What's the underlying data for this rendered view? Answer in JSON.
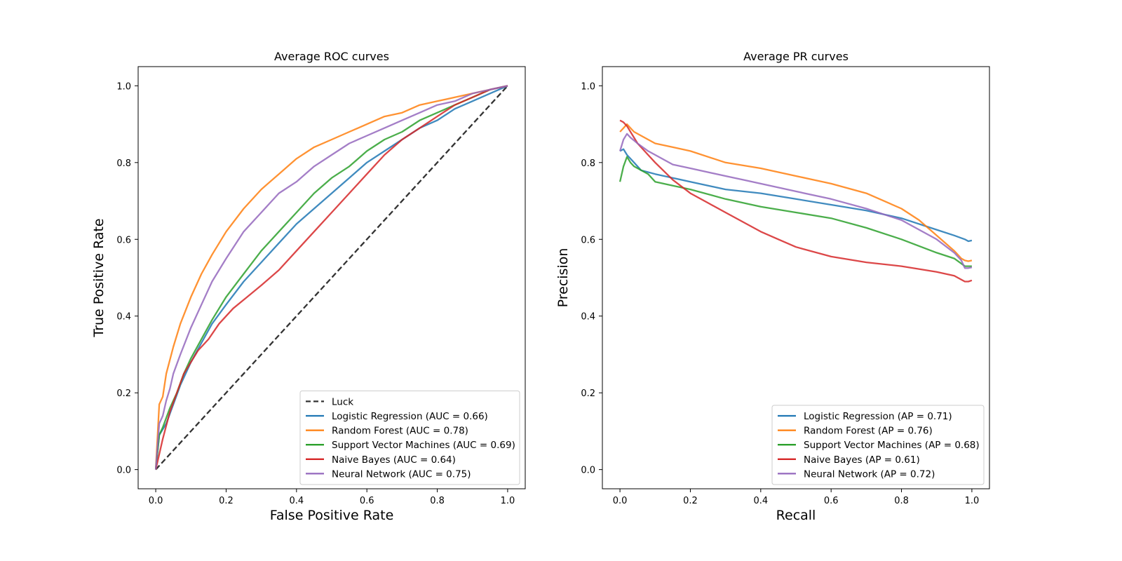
{
  "figure": {
    "background": "#ffffff"
  },
  "chart_data": [
    {
      "type": "line",
      "title": "Average ROC curves",
      "xlabel": "False Positive Rate",
      "ylabel": "True Positive Rate",
      "xlim": [
        -0.05,
        1.05
      ],
      "ylim": [
        -0.05,
        1.05
      ],
      "xticks": [
        "0.0",
        "0.2",
        "0.4",
        "0.6",
        "0.8",
        "1.0"
      ],
      "yticks": [
        "0.0",
        "0.2",
        "0.4",
        "0.6",
        "0.8",
        "1.0"
      ],
      "grid": false,
      "legend_position": "lower right",
      "series": [
        {
          "name": "Luck",
          "color": "#333333",
          "dash": true,
          "x": [
            0,
            1
          ],
          "y": [
            0,
            1
          ]
        },
        {
          "name": "Logistic Regression (AUC = 0.66)",
          "color": "#1f77b4",
          "x": [
            0,
            0.01,
            0.03,
            0.05,
            0.07,
            0.1,
            0.13,
            0.16,
            0.2,
            0.25,
            0.3,
            0.35,
            0.4,
            0.45,
            0.5,
            0.55,
            0.6,
            0.65,
            0.7,
            0.75,
            0.8,
            0.85,
            0.9,
            0.95,
            1.0
          ],
          "y": [
            0,
            0.09,
            0.12,
            0.17,
            0.22,
            0.28,
            0.33,
            0.38,
            0.43,
            0.49,
            0.54,
            0.59,
            0.64,
            0.68,
            0.72,
            0.76,
            0.8,
            0.83,
            0.86,
            0.89,
            0.91,
            0.94,
            0.96,
            0.98,
            1.0
          ]
        },
        {
          "name": "Random Forest (AUC = 0.78)",
          "color": "#ff7f0e",
          "x": [
            0,
            0.01,
            0.02,
            0.03,
            0.05,
            0.07,
            0.1,
            0.13,
            0.16,
            0.2,
            0.25,
            0.3,
            0.35,
            0.4,
            0.45,
            0.5,
            0.55,
            0.6,
            0.65,
            0.7,
            0.75,
            0.8,
            0.85,
            0.9,
            0.95,
            1.0
          ],
          "y": [
            0,
            0.17,
            0.19,
            0.25,
            0.32,
            0.38,
            0.45,
            0.51,
            0.56,
            0.62,
            0.68,
            0.73,
            0.77,
            0.81,
            0.84,
            0.86,
            0.88,
            0.9,
            0.92,
            0.93,
            0.95,
            0.96,
            0.97,
            0.98,
            0.99,
            1.0
          ]
        },
        {
          "name": "Support Vector Machines (AUC = 0.69)",
          "color": "#2ca02c",
          "x": [
            0,
            0.01,
            0.02,
            0.04,
            0.06,
            0.08,
            0.1,
            0.13,
            0.16,
            0.2,
            0.25,
            0.3,
            0.35,
            0.4,
            0.45,
            0.5,
            0.55,
            0.6,
            0.65,
            0.7,
            0.75,
            0.8,
            0.85,
            0.9,
            0.95,
            1.0
          ],
          "y": [
            0,
            0.09,
            0.11,
            0.16,
            0.2,
            0.25,
            0.29,
            0.34,
            0.39,
            0.45,
            0.51,
            0.57,
            0.62,
            0.67,
            0.72,
            0.76,
            0.79,
            0.83,
            0.86,
            0.88,
            0.91,
            0.93,
            0.95,
            0.97,
            0.99,
            1.0
          ]
        },
        {
          "name": "Naive Bayes (AUC = 0.64)",
          "color": "#d62728",
          "x": [
            0,
            0.02,
            0.04,
            0.06,
            0.08,
            0.1,
            0.12,
            0.15,
            0.18,
            0.22,
            0.26,
            0.3,
            0.35,
            0.4,
            0.45,
            0.5,
            0.55,
            0.6,
            0.65,
            0.7,
            0.75,
            0.8,
            0.85,
            0.9,
            0.95,
            1.0
          ],
          "y": [
            0,
            0.08,
            0.15,
            0.2,
            0.25,
            0.28,
            0.31,
            0.34,
            0.38,
            0.42,
            0.45,
            0.48,
            0.52,
            0.57,
            0.62,
            0.67,
            0.72,
            0.77,
            0.82,
            0.86,
            0.89,
            0.92,
            0.95,
            0.97,
            0.99,
            1.0
          ]
        },
        {
          "name": "Neural Network (AUC = 0.75)",
          "color": "#9467bd",
          "x": [
            0,
            0.01,
            0.02,
            0.03,
            0.04,
            0.05,
            0.07,
            0.1,
            0.13,
            0.16,
            0.2,
            0.25,
            0.3,
            0.35,
            0.4,
            0.45,
            0.5,
            0.55,
            0.6,
            0.65,
            0.7,
            0.75,
            0.8,
            0.85,
            0.9,
            0.95,
            1.0
          ],
          "y": [
            0,
            0.12,
            0.14,
            0.18,
            0.21,
            0.25,
            0.3,
            0.37,
            0.43,
            0.49,
            0.55,
            0.62,
            0.67,
            0.72,
            0.75,
            0.79,
            0.82,
            0.85,
            0.87,
            0.89,
            0.91,
            0.93,
            0.95,
            0.96,
            0.98,
            0.99,
            1.0
          ]
        }
      ]
    },
    {
      "type": "line",
      "title": "Average PR curves",
      "xlabel": "Recall",
      "ylabel": "Precision",
      "xlim": [
        -0.05,
        1.05
      ],
      "ylim": [
        -0.05,
        1.05
      ],
      "xticks": [
        "0.0",
        "0.2",
        "0.4",
        "0.6",
        "0.8",
        "1.0"
      ],
      "yticks": [
        "0.0",
        "0.2",
        "0.4",
        "0.6",
        "0.8",
        "1.0"
      ],
      "grid": false,
      "legend_position": "lower right",
      "series": [
        {
          "name": "Logistic Regression (AP = 0.71)",
          "color": "#1f77b4",
          "x": [
            0,
            0.01,
            0.02,
            0.04,
            0.06,
            0.08,
            0.1,
            0.15,
            0.2,
            0.3,
            0.4,
            0.5,
            0.6,
            0.7,
            0.8,
            0.9,
            0.95,
            0.98,
            0.99,
            1.0
          ],
          "y": [
            0.83,
            0.835,
            0.82,
            0.8,
            0.78,
            0.775,
            0.77,
            0.76,
            0.75,
            0.73,
            0.72,
            0.705,
            0.69,
            0.675,
            0.655,
            0.625,
            0.61,
            0.6,
            0.595,
            0.597
          ]
        },
        {
          "name": "Random Forest (AP = 0.76)",
          "color": "#ff7f0e",
          "x": [
            0,
            0.01,
            0.02,
            0.03,
            0.04,
            0.06,
            0.08,
            0.1,
            0.15,
            0.2,
            0.3,
            0.4,
            0.5,
            0.6,
            0.7,
            0.8,
            0.85,
            0.9,
            0.95,
            0.97,
            0.98,
            0.99,
            1.0
          ],
          "y": [
            0.88,
            0.89,
            0.9,
            0.89,
            0.88,
            0.87,
            0.86,
            0.85,
            0.84,
            0.83,
            0.8,
            0.785,
            0.765,
            0.745,
            0.72,
            0.68,
            0.65,
            0.61,
            0.57,
            0.55,
            0.545,
            0.543,
            0.545
          ]
        },
        {
          "name": "Support Vector Machines (AP = 0.68)",
          "color": "#2ca02c",
          "x": [
            0,
            0.01,
            0.02,
            0.03,
            0.04,
            0.06,
            0.08,
            0.1,
            0.15,
            0.2,
            0.3,
            0.4,
            0.5,
            0.6,
            0.7,
            0.8,
            0.9,
            0.95,
            0.98,
            1.0
          ],
          "y": [
            0.75,
            0.79,
            0.815,
            0.8,
            0.79,
            0.78,
            0.77,
            0.75,
            0.74,
            0.73,
            0.705,
            0.685,
            0.67,
            0.655,
            0.63,
            0.6,
            0.565,
            0.55,
            0.53,
            0.53
          ]
        },
        {
          "name": "Naive Bayes (AP = 0.61)",
          "color": "#d62728",
          "x": [
            0,
            0.01,
            0.02,
            0.03,
            0.05,
            0.08,
            0.1,
            0.15,
            0.2,
            0.25,
            0.3,
            0.35,
            0.4,
            0.45,
            0.5,
            0.6,
            0.7,
            0.8,
            0.9,
            0.95,
            0.98,
            0.99,
            1.0
          ],
          "y": [
            0.91,
            0.905,
            0.895,
            0.88,
            0.85,
            0.82,
            0.8,
            0.755,
            0.72,
            0.695,
            0.67,
            0.645,
            0.62,
            0.6,
            0.58,
            0.555,
            0.54,
            0.53,
            0.515,
            0.505,
            0.49,
            0.49,
            0.493
          ]
        },
        {
          "name": "Neural Network (AP = 0.72)",
          "color": "#9467bd",
          "x": [
            0,
            0.01,
            0.02,
            0.03,
            0.05,
            0.08,
            0.1,
            0.15,
            0.2,
            0.3,
            0.35,
            0.4,
            0.5,
            0.6,
            0.7,
            0.8,
            0.9,
            0.95,
            0.97,
            0.98,
            0.99,
            1.0
          ],
          "y": [
            0.83,
            0.86,
            0.875,
            0.865,
            0.85,
            0.83,
            0.82,
            0.795,
            0.785,
            0.765,
            0.755,
            0.745,
            0.725,
            0.705,
            0.68,
            0.65,
            0.6,
            0.565,
            0.545,
            0.525,
            0.525,
            0.527
          ]
        }
      ]
    }
  ]
}
